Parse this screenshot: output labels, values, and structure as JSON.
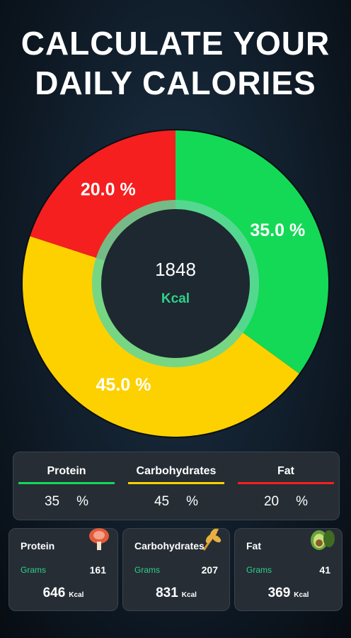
{
  "header": {
    "title_lines": [
      "CALCULATE YOUR",
      "DAILY CALORIES"
    ]
  },
  "chart_data": {
    "type": "donut",
    "values": [
      35,
      45,
      20
    ],
    "value_labels": [
      "35.0 %",
      "45.0 %",
      "20.0 %"
    ],
    "colors": [
      "#14d957",
      "#fdd100",
      "#f51f1f"
    ],
    "center_value": 1848,
    "center_label": "Kcal"
  },
  "summary": [
    {
      "name": "Protein",
      "value": 35,
      "unit": "%",
      "color": "#14d957"
    },
    {
      "name": "Carbohydrates",
      "value": 45,
      "unit": "%",
      "color": "#fdd100"
    },
    {
      "name": "Fat",
      "value": 20,
      "unit": "%",
      "color": "#f51f1f"
    }
  ],
  "cards": [
    {
      "title": "Protein",
      "grams_label": "Grams",
      "grams": 161,
      "kcal": 646,
      "kcal_unit": "Kcal"
    },
    {
      "title": "Carbohydrates",
      "grams_label": "Grams",
      "grams": 207,
      "kcal": 831,
      "kcal_unit": "Kcal"
    },
    {
      "title": "Fat",
      "grams_label": "Grams",
      "grams": 41,
      "kcal": 369,
      "kcal_unit": "Kcal"
    }
  ]
}
